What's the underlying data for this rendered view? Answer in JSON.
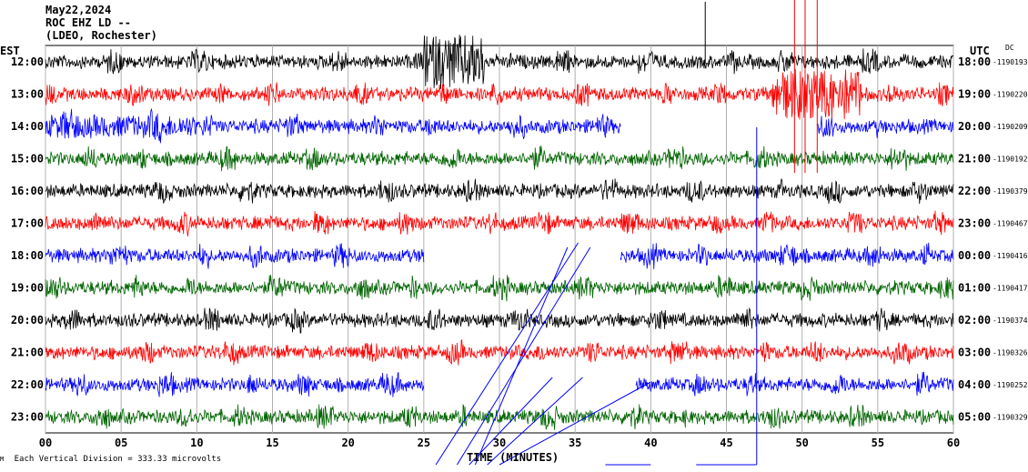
{
  "header": {
    "date": "May22,2024",
    "station": "ROC EHZ LD --",
    "network": "(LDEO, Rochester)"
  },
  "left_timezone": "EST",
  "right_timezone": "UTC",
  "dc_label": "DC",
  "xlabel": "TIME (MINUTES)",
  "footer": "Each Vertical Division =  333.33 microvolts",
  "footer_mark": "М",
  "chart_data": {
    "type": "line",
    "title": "",
    "xlabel": "TIME (MINUTES)",
    "xlim": [
      0,
      60
    ],
    "x_ticks": [
      "00",
      "05",
      "10",
      "15",
      "20",
      "25",
      "30",
      "35",
      "40",
      "45",
      "50",
      "55",
      "60"
    ],
    "trace_colors": [
      "#000000",
      "#ff0000",
      "#0000ff",
      "#006400"
    ],
    "rows": [
      {
        "left": "12:00",
        "right": "18:00",
        "dc": "-1190193",
        "color": "#000000",
        "activity": "burst 25-29, spike 43.5"
      },
      {
        "left": "13:00",
        "right": "19:00",
        "dc": "-1190220",
        "color": "#ff0000",
        "activity": "burst 48-54"
      },
      {
        "left": "14:00",
        "right": "20:00",
        "dc": "-1190209",
        "color": "#0000ff",
        "gap": [
          38,
          51
        ]
      },
      {
        "left": "15:00",
        "right": "21:00",
        "dc": "-1190192",
        "color": "#006400"
      },
      {
        "left": "16:00",
        "right": "22:00",
        "dc": "-1190379",
        "color": "#000000"
      },
      {
        "left": "17:00",
        "right": "23:00",
        "dc": "-1190467",
        "color": "#ff0000"
      },
      {
        "left": "18:00",
        "right": "00:00",
        "dc": "-1190416",
        "color": "#0000ff",
        "gap": [
          25,
          38
        ]
      },
      {
        "left": "19:00",
        "right": "01:00",
        "dc": "-1190417",
        "color": "#006400"
      },
      {
        "left": "20:00",
        "right": "02:00",
        "dc": "-1190374",
        "color": "#000000"
      },
      {
        "left": "21:00",
        "right": "03:00",
        "dc": "-1190326",
        "color": "#ff0000"
      },
      {
        "left": "22:00",
        "right": "04:00",
        "dc": "-1190252",
        "color": "#0000ff",
        "gap": [
          25,
          39
        ]
      },
      {
        "left": "23:00",
        "right": "05:00",
        "dc": "-1190329",
        "color": "#006400"
      }
    ],
    "grid": true
  }
}
